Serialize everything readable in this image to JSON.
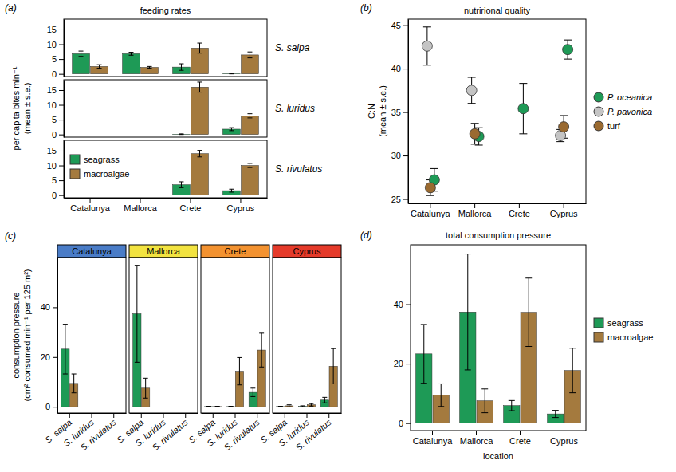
{
  "chart_data": [
    {
      "type": "bar",
      "label": "(a)",
      "title": "feeding rates",
      "ylabel": [
        "per capita bites min⁻¹",
        "(mean ± s.e.)"
      ],
      "categories": [
        "Catalunya",
        "Mallorca",
        "Crete",
        "Cyprus"
      ],
      "series": [
        {
          "name": "seagrass",
          "color": "#1e9a56"
        },
        {
          "name": "macroalgae",
          "color": "#a47a3e"
        }
      ],
      "ylim": [
        -0.9,
        18.5
      ],
      "yticks": [
        0,
        5,
        10,
        15
      ],
      "legend": "bottom-left",
      "facets": [
        {
          "title": "S. salpa",
          "values": [
            [
              6.8,
              6.8,
              2.3,
              0.1
            ],
            [
              2.5,
              2.2,
              8.7,
              6.4
            ]
          ],
          "errors": [
            [
              0.9,
              0.5,
              1.1,
              0.1
            ],
            [
              0.6,
              0.3,
              1.7,
              1.0
            ]
          ]
        },
        {
          "title": "S. luridus",
          "values": [
            [
              null,
              null,
              0.1,
              1.8
            ],
            [
              null,
              null,
              16.0,
              6.3
            ]
          ],
          "errors": [
            [
              null,
              null,
              0.1,
              0.5
            ],
            [
              null,
              null,
              1.7,
              0.7
            ]
          ]
        },
        {
          "title": "S. rivulatus",
          "values": [
            [
              null,
              null,
              3.5,
              1.5
            ],
            [
              null,
              null,
              14.0,
              10.0
            ]
          ],
          "errors": [
            [
              null,
              null,
              1.0,
              0.5
            ],
            [
              null,
              null,
              1.1,
              0.7
            ]
          ]
        }
      ]
    },
    {
      "type": "scatter",
      "label": "(b)",
      "title": "nutrirional quality",
      "ylabel": [
        "C:N",
        "(mean ± s.e.)"
      ],
      "categories": [
        "Catalunya",
        "Mallorca",
        "Crete",
        "Cyprus"
      ],
      "series": [
        {
          "name": "P. oceanica",
          "color": "#1e9a56",
          "values": [
            27.2,
            32.2,
            35.4,
            42.2
          ],
          "errors": [
            1.3,
            1.0,
            2.9,
            1.1
          ]
        },
        {
          "name": "P. pavonica",
          "color": "#c4c4c4",
          "values": [
            42.6,
            37.5,
            null,
            32.3
          ],
          "errors": [
            2.2,
            1.5,
            null,
            0.7
          ]
        },
        {
          "name": "turf",
          "color": "#9a6a30",
          "values": [
            26.3,
            32.5,
            null,
            33.3
          ],
          "errors": [
            0.9,
            1.2,
            null,
            1.3
          ]
        }
      ],
      "ylim": [
        24.5,
        45.7
      ],
      "yticks": [
        25,
        30,
        35,
        40,
        45
      ],
      "legend": "right"
    },
    {
      "type": "bar",
      "label": "(c)",
      "ylabel": [
        "consumption pressure",
        "(cm² consumed min⁻¹ per 125 m²)"
      ],
      "categories": [
        "S. salpa",
        "S. luridus",
        "S. rivulatus"
      ],
      "series": [
        {
          "color": "#1e9a56"
        },
        {
          "color": "#a47a3e"
        }
      ],
      "ylim": [
        -2.5,
        60
      ],
      "yticks": [
        0,
        20,
        40
      ],
      "facets": [
        {
          "title": "Catalunya",
          "color": "#4a7cc7",
          "values": [
            [
              23.2,
              null,
              null
            ],
            [
              9.4,
              null,
              null
            ]
          ],
          "errors": [
            [
              10.0,
              null,
              null
            ],
            [
              3.8,
              null,
              null
            ]
          ]
        },
        {
          "title": "Mallorca",
          "color": "#f2e340",
          "values": [
            [
              37.4,
              null,
              null
            ],
            [
              7.5,
              null,
              null
            ]
          ],
          "errors": [
            [
              19.5,
              null,
              null
            ],
            [
              4.0,
              null,
              null
            ]
          ]
        },
        {
          "title": "Crete",
          "color": "#f39230",
          "values": [
            [
              0.1,
              0.1,
              5.8
            ],
            [
              0.1,
              14.3,
              22.8
            ]
          ],
          "errors": [
            [
              0.1,
              0.1,
              1.7
            ],
            [
              0.1,
              5.5,
              6.8
            ]
          ]
        },
        {
          "title": "Cyprus",
          "color": "#e53a2a",
          "values": [
            [
              0.1,
              0.2,
              2.7
            ],
            [
              0.4,
              0.8,
              16.3
            ]
          ],
          "errors": [
            [
              0.1,
              0.2,
              1.1
            ],
            [
              0.4,
              0.5,
              7.1
            ]
          ]
        }
      ]
    },
    {
      "type": "bar",
      "label": "(d)",
      "title": "total consumption pressure",
      "xlabel": "location",
      "categories": [
        "Catalunya",
        "Mallorca",
        "Crete",
        "Cyprus"
      ],
      "series": [
        {
          "name": "seagrass",
          "color": "#1e9a56",
          "values": [
            23.3,
            37.4,
            5.9,
            3.1
          ],
          "errors": [
            9.9,
            19.5,
            1.7,
            1.2
          ]
        },
        {
          "name": "macroalgae",
          "color": "#a47a3e",
          "values": [
            9.4,
            7.5,
            37.3,
            17.7
          ],
          "errors": [
            3.8,
            4.0,
            11.5,
            7.5
          ]
        }
      ],
      "ylim": [
        -2.5,
        60
      ],
      "yticks": [
        0,
        20,
        40
      ],
      "legend": "right"
    }
  ]
}
